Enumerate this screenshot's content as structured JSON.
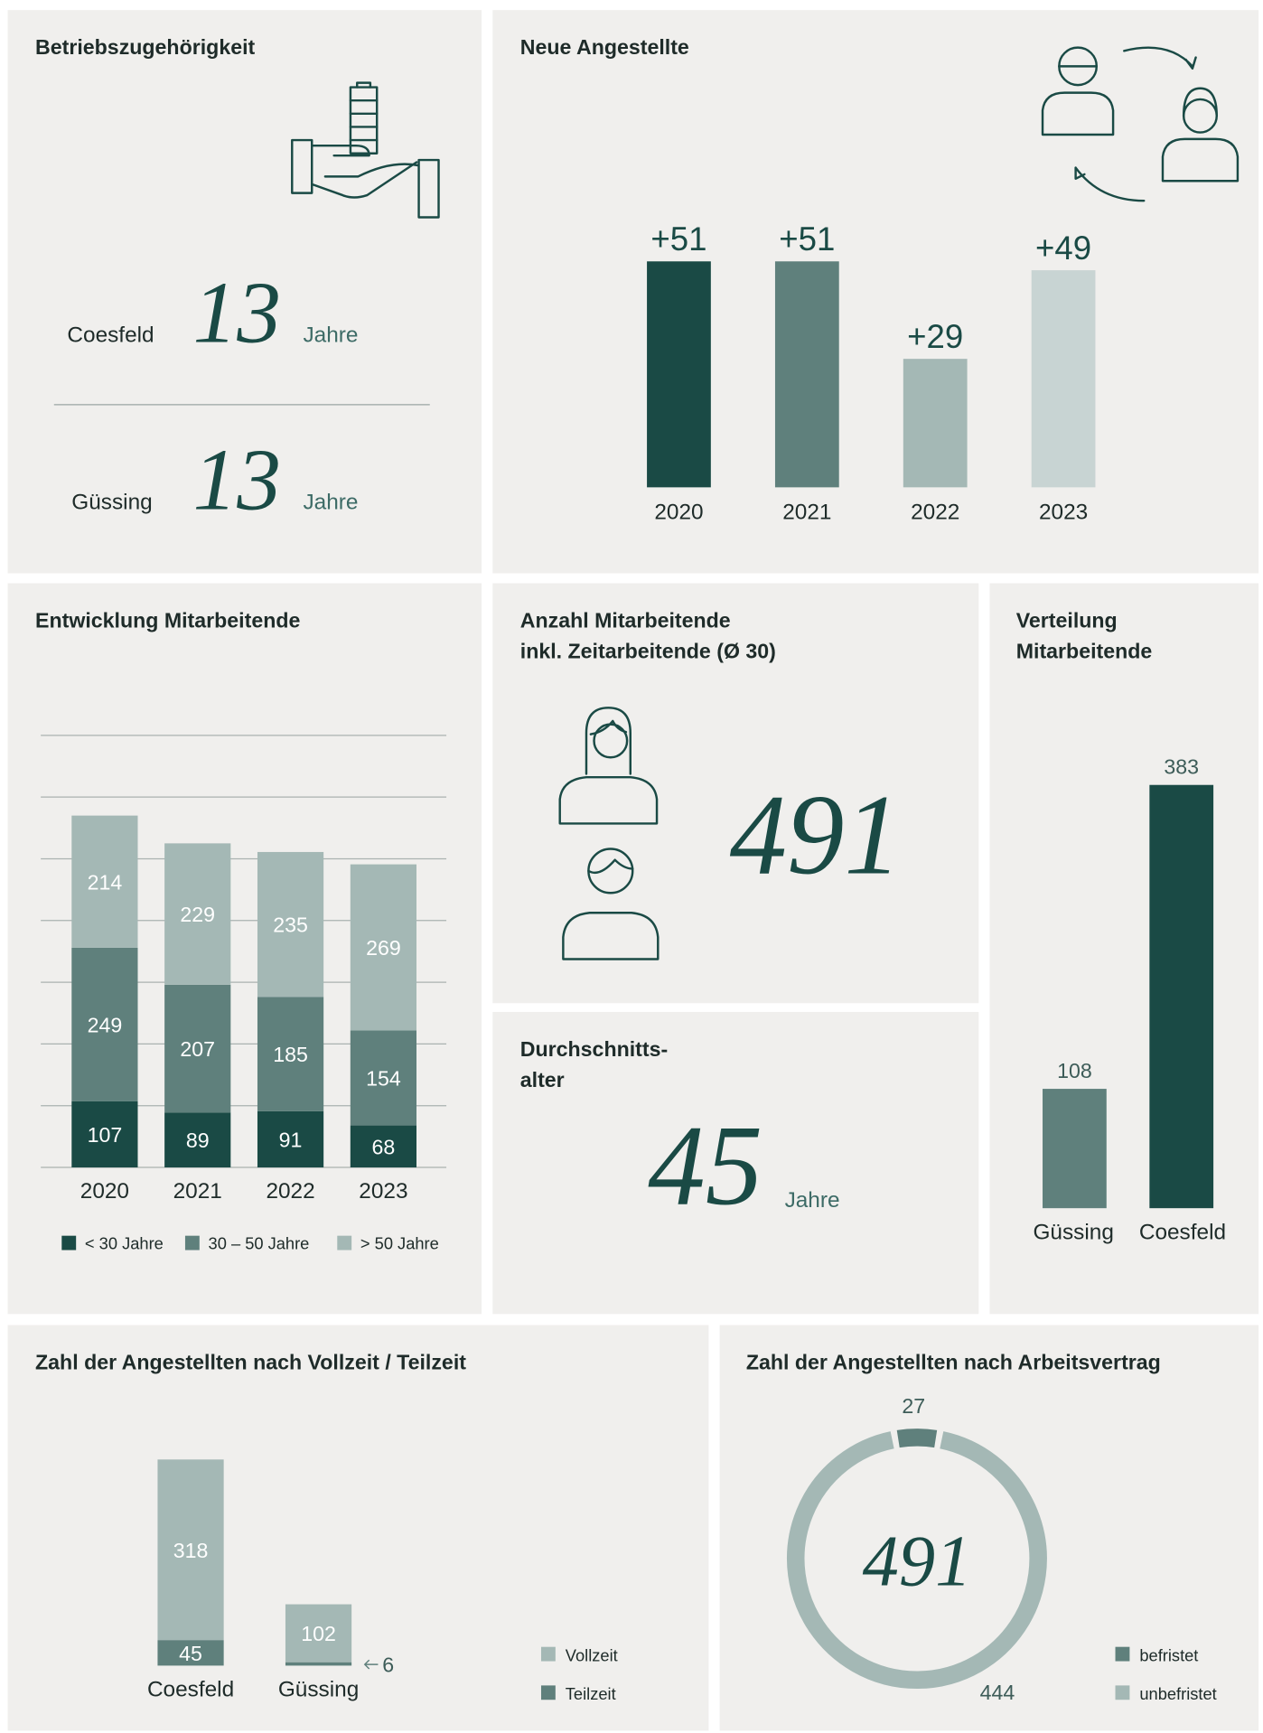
{
  "tenure": {
    "title": "Betriebszugehörigkeit",
    "rows": [
      {
        "location": "Coesfeld",
        "years": 13,
        "unit": "Jahre"
      },
      {
        "location": "Güssing",
        "years": 13,
        "unit": "Jahre"
      }
    ]
  },
  "headcount": {
    "title": [
      "Anzahl Mitarbeitende",
      "inkl. Zeitarbeitende (Ø 30)"
    ],
    "value": 491
  },
  "average_age": {
    "title": [
      "Durchschnitts-",
      "alter"
    ],
    "value": 45,
    "unit": "Jahre"
  },
  "chart_data": [
    {
      "type": "bar",
      "title": "Neue Angestellte",
      "categories": [
        "2020",
        "2021",
        "2022",
        "2023"
      ],
      "values": [
        51,
        51,
        29,
        49
      ],
      "value_labels": [
        "+51",
        "+51",
        "+29",
        "+49"
      ],
      "colors": [
        "#1a4a45",
        "#5f807c",
        "#a4b8b5",
        "#c8d4d3"
      ]
    },
    {
      "type": "stacked_bar",
      "title": "Entwicklung Mitarbeitende",
      "categories": [
        "2020",
        "2021",
        "2022",
        "2023"
      ],
      "ylim": [
        0,
        700
      ],
      "grid": true,
      "series": [
        {
          "name": "< 30 Jahre",
          "color": "#1a4a45",
          "values": [
            107,
            89,
            91,
            68
          ]
        },
        {
          "name": "30 – 50 Jahre",
          "color": "#5f807c",
          "values": [
            249,
            207,
            185,
            154
          ]
        },
        {
          "name": "> 50 Jahre",
          "color": "#a4b8b5",
          "values": [
            214,
            229,
            235,
            269
          ]
        }
      ]
    },
    {
      "type": "bar",
      "title": [
        "Verteilung",
        "Mitarbeitende"
      ],
      "categories": [
        "Güssing",
        "Coesfeld"
      ],
      "values": [
        108,
        383
      ],
      "colors": [
        "#5f807c",
        "#1a4a45"
      ]
    },
    {
      "type": "stacked_bar",
      "title": "Zahl der Angestellten nach Vollzeit / Teilzeit",
      "categories": [
        "Coesfeld",
        "Güssing"
      ],
      "series": [
        {
          "name": "Vollzeit",
          "color": "#a4b8b5",
          "values": [
            318,
            102
          ]
        },
        {
          "name": "Teilzeit",
          "color": "#5f807c",
          "values": [
            45,
            6
          ]
        }
      ]
    },
    {
      "type": "donut",
      "title": "Zahl der Angestellten nach Arbeitsvertrag",
      "center_label": "491",
      "categories": [
        "befristet",
        "unbefristet"
      ],
      "values": [
        27,
        444
      ],
      "colors": [
        "#5f807c",
        "#a4b8b5"
      ]
    }
  ]
}
